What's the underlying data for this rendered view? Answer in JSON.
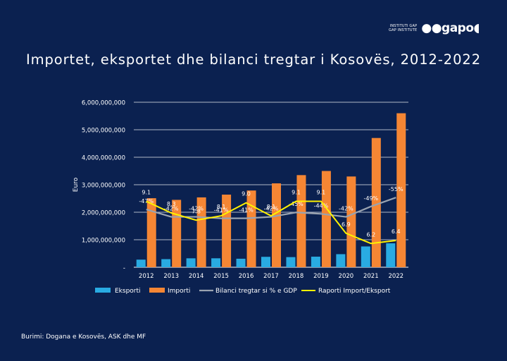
{
  "logo": {
    "small_line1": "INSTITUTI GAP",
    "small_line2": "GAP INSTITUTE",
    "mark": "gapo"
  },
  "title": "Importet, eksportet dhe bilanci tregtar i Kosovës, 2012-2022",
  "source": "Burimi: Dogana e Kosovës, ASK dhe MF",
  "colors": {
    "background": "#0b2150",
    "exports": "#29abe2",
    "imports": "#f58634",
    "balance_line": "#9aa3b0",
    "ratio_line": "#fff200"
  },
  "chart_data": {
    "type": "bar",
    "categories": [
      "2012",
      "2013",
      "2014",
      "2015",
      "2016",
      "2017",
      "2018",
      "2019",
      "2020",
      "2021",
      "2022"
    ],
    "ylabel": "Euro",
    "ylim": [
      0,
      6000000000
    ],
    "yticks": [
      0,
      1000000000,
      2000000000,
      3000000000,
      4000000000,
      5000000000,
      6000000000
    ],
    "ytick_labels": [
      "-",
      "1,000,000,000",
      "2,000,000,000",
      "3,000,000,000",
      "4,000,000,000",
      "5,000,000,000",
      "6,000,000,000"
    ],
    "grid": "horizontal",
    "legend_position": "bottom",
    "series": [
      {
        "name": "Eksporti",
        "kind": "bar",
        "values": [
          276000000,
          294000000,
          324000000,
          325000000,
          309000000,
          378000000,
          368000000,
          384000000,
          475000000,
          756000000,
          870000000
        ]
      },
      {
        "name": "Importi",
        "kind": "bar",
        "values": [
          2510000000,
          2450000000,
          2540000000,
          2640000000,
          2790000000,
          3050000000,
          3350000000,
          3500000000,
          3300000000,
          4700000000,
          5600000000
        ]
      },
      {
        "name": "Bilanci tregtar si % e GDP",
        "kind": "line",
        "values": [
          -47,
          -42,
          -42,
          -41,
          -41,
          -42,
          -45,
          -44,
          -42,
          -49,
          -55
        ],
        "labels": [
          "-47%",
          "-42%",
          "-42%",
          "-41%",
          "-41%",
          "-42%",
          "-45%",
          "-44%",
          "-42%",
          "-49%",
          "-55%"
        ]
      },
      {
        "name": "Raporti Import/Eksport",
        "kind": "line",
        "values": [
          9.1,
          8.3,
          7.8,
          8.1,
          9.0,
          8.1,
          9.1,
          9.1,
          6.9,
          6.2,
          6.4
        ],
        "labels": [
          "9.1",
          "8.3",
          "7.8",
          "8.1",
          "9.0",
          "8.1",
          "9.1",
          "9.1",
          "6.9",
          "6.2",
          "6.4"
        ]
      }
    ]
  }
}
